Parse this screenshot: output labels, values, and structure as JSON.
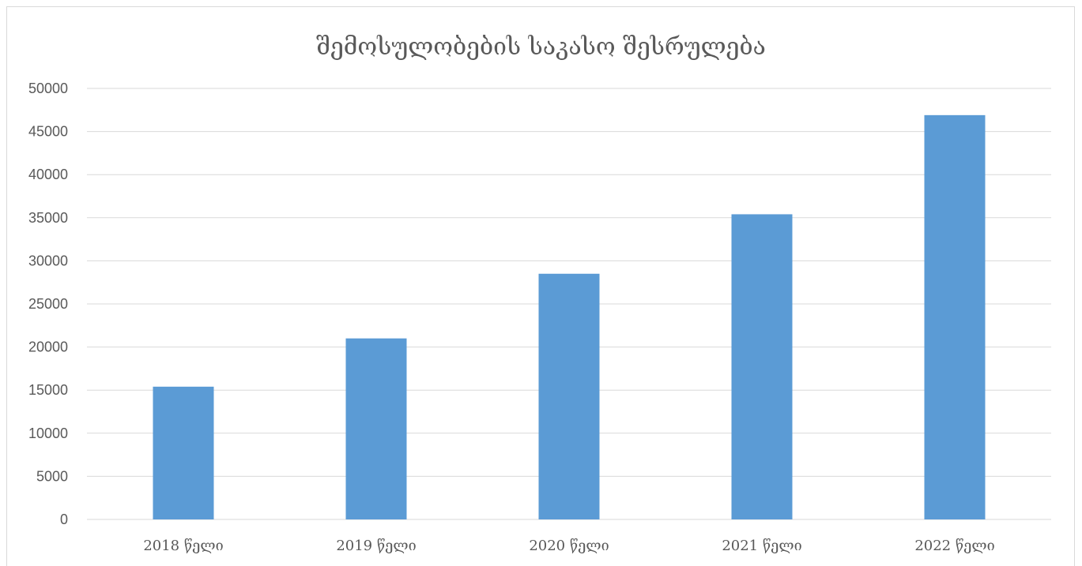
{
  "chart_data": {
    "type": "bar",
    "title": "შემოსულობების საკასო შესრულება",
    "categories": [
      "2018 წელი",
      "2019 წელი",
      "2020 წელი",
      "2021 წელი",
      "2022 წელი"
    ],
    "values": [
      15400,
      21000,
      28500,
      35400,
      46900
    ],
    "ylim": [
      0,
      50000
    ],
    "yticks": [
      "0",
      "5000",
      "10000",
      "15000",
      "20000",
      "25000",
      "30000",
      "35000",
      "40000",
      "45000",
      "50000"
    ],
    "grid": true,
    "legend": "none",
    "bar_color": "#5b9bd5",
    "grid_color": "#d9d9d9",
    "text_color": "#595959"
  }
}
